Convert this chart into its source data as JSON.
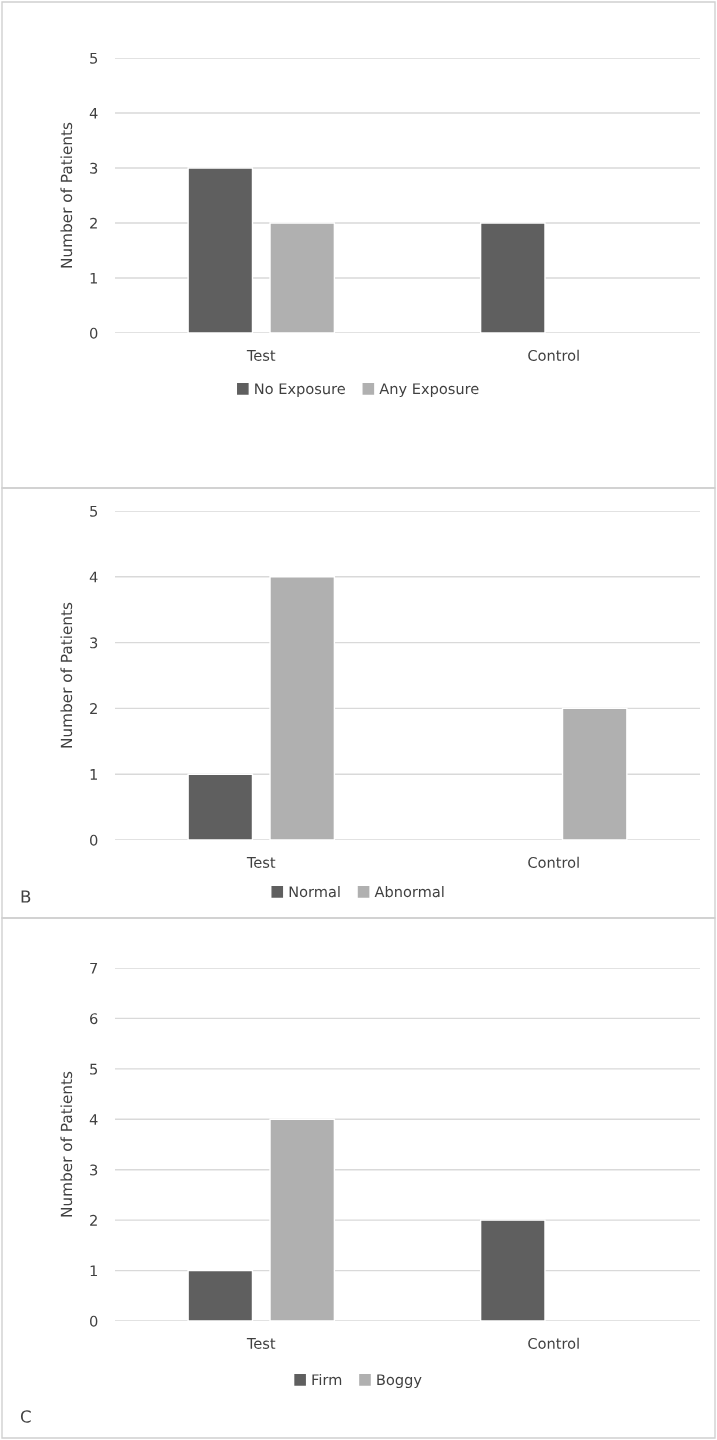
{
  "chart_data": [
    {
      "type": "bar",
      "ylabel": "Number of Patients",
      "categories": [
        "Test",
        "Control"
      ],
      "series": [
        {
          "name": "No Exposure",
          "color": "#5f5f5f",
          "values": [
            3,
            2
          ]
        },
        {
          "name": "Any Exposure",
          "color": "#b0b0b0",
          "values": [
            2,
            null
          ]
        }
      ],
      "ylim": [
        0,
        5
      ],
      "yticks": [
        0,
        1,
        2,
        3,
        4,
        5
      ],
      "grid": "y",
      "legend": "bottom"
    },
    {
      "type": "bar",
      "ylabel": "Number of Patients",
      "categories": [
        "Test",
        "Control"
      ],
      "series": [
        {
          "name": "Normal",
          "color": "#5f5f5f",
          "values": [
            1,
            null
          ]
        },
        {
          "name": "Abnormal",
          "color": "#b0b0b0",
          "values": [
            4,
            2
          ]
        }
      ],
      "ylim": [
        0,
        5
      ],
      "yticks": [
        0,
        1,
        2,
        3,
        4,
        5
      ],
      "grid": "y",
      "legend": "bottom",
      "annotations": [
        "B"
      ]
    },
    {
      "type": "bar",
      "ylabel": "Number of Patients",
      "categories": [
        "Test",
        "Control"
      ],
      "series": [
        {
          "name": "Firm",
          "color": "#5f5f5f",
          "values": [
            1,
            2
          ]
        },
        {
          "name": "Boggy",
          "color": "#b0b0b0",
          "values": [
            4,
            null
          ]
        }
      ],
      "ylim": [
        0,
        7
      ],
      "yticks": [
        0,
        1,
        2,
        3,
        4,
        5,
        6,
        7
      ],
      "grid": "y",
      "legend": "bottom",
      "annotations": [
        "C"
      ]
    }
  ]
}
